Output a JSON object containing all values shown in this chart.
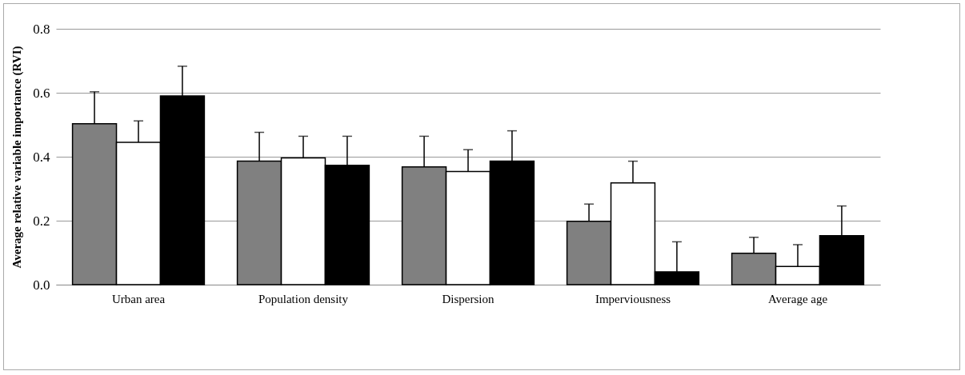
{
  "chart_data": {
    "type": "bar",
    "ylabel": "Average relative variable importance (RVI)",
    "categories": [
      "Urban area",
      "Population density",
      "Dispersion",
      "Imperviousness",
      "Average age"
    ],
    "series": [
      {
        "color": "#808080",
        "values": [
          0.503,
          0.386,
          0.368,
          0.198,
          0.098
        ],
        "errors": [
          [
            0.503,
            0.603
          ],
          [
            0.386,
            0.476
          ],
          [
            0.368,
            0.464
          ],
          [
            0.198,
            0.252
          ],
          [
            0.098,
            0.148
          ]
        ]
      },
      {
        "color": "#ffffff",
        "values": [
          0.445,
          0.396,
          0.354,
          0.318,
          0.057
        ],
        "errors": [
          [
            0.445,
            0.512
          ],
          [
            0.396,
            0.464
          ],
          [
            0.354,
            0.422
          ],
          [
            0.318,
            0.386
          ],
          [
            0.057,
            0.125
          ]
        ]
      },
      {
        "color": "#000000",
        "values": [
          0.59,
          0.373,
          0.386,
          0.04,
          0.153
        ],
        "errors": [
          [
            0.59,
            0.683
          ],
          [
            0.373,
            0.464
          ],
          [
            0.386,
            0.481
          ],
          [
            0.04,
            0.134
          ],
          [
            0.153,
            0.246
          ]
        ]
      }
    ],
    "ylim": [
      0,
      0.8
    ],
    "yticks": [
      {
        "value": 0,
        "label": "0.0"
      },
      {
        "value": 0.2,
        "label": "0.2"
      },
      {
        "value": 0.4,
        "label": "0.4"
      },
      {
        "value": 0.6,
        "label": "0.6"
      },
      {
        "value": 0.8,
        "label": "0.8"
      }
    ],
    "grid": "y",
    "legend": false
  }
}
